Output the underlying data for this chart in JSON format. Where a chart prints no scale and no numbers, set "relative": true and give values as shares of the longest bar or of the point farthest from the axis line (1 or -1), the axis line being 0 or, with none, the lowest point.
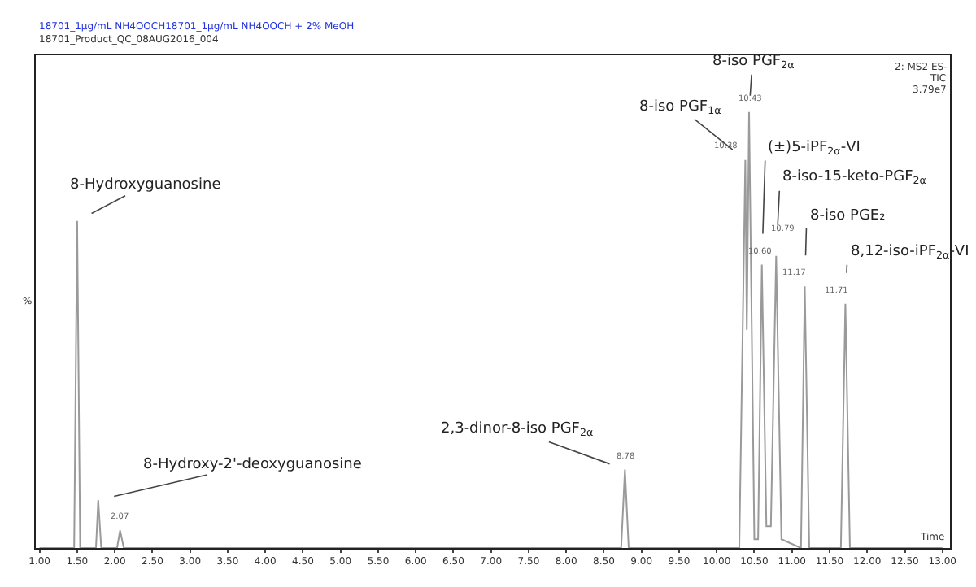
{
  "chart_data": {
    "type": "line",
    "relative": true,
    "xlabel": "Time",
    "ylabel": "%",
    "color": "#9a9a9a",
    "marker": "none",
    "line_style": "solid",
    "legend": false,
    "x": [
      1.0,
      1.46,
      1.5,
      1.54,
      1.75,
      1.78,
      1.82,
      2.03,
      2.07,
      2.12,
      8.73,
      8.78,
      8.83,
      10.3,
      10.38,
      10.4,
      10.43,
      10.5,
      10.55,
      10.6,
      10.66,
      10.72,
      10.79,
      10.86,
      11.12,
      11.17,
      11.23,
      11.65,
      11.71,
      11.77,
      13.0
    ],
    "values": [
      0,
      0,
      0.75,
      0,
      0,
      0.11,
      0,
      0,
      0.04,
      0,
      0,
      0.18,
      0,
      0,
      0.89,
      0.5,
      1.0,
      0.02,
      0.02,
      0.65,
      0.05,
      0.05,
      0.67,
      0.02,
      0,
      0.6,
      0,
      0,
      0.56,
      0,
      0
    ],
    "xlim": [
      0.95,
      13.1
    ],
    "xticks": [
      {
        "value": 1.0,
        "label": "1.00"
      },
      {
        "value": 1.5,
        "label": "1.50"
      },
      {
        "value": 2.0,
        "label": "2.00"
      },
      {
        "value": 2.5,
        "label": "2.50"
      },
      {
        "value": 3.0,
        "label": "3.00"
      },
      {
        "value": 3.5,
        "label": "3.50"
      },
      {
        "value": 4.0,
        "label": "4.00"
      },
      {
        "value": 4.5,
        "label": "4.50"
      },
      {
        "value": 5.0,
        "label": "5.00"
      },
      {
        "value": 5.5,
        "label": "5.50"
      },
      {
        "value": 6.0,
        "label": "6.00"
      },
      {
        "value": 6.5,
        "label": "6.50"
      },
      {
        "value": 7.0,
        "label": "7.00"
      },
      {
        "value": 7.5,
        "label": "7.50"
      },
      {
        "value": 8.0,
        "label": "8.00"
      },
      {
        "value": 8.5,
        "label": "8.50"
      },
      {
        "value": 9.0,
        "label": "9.00"
      },
      {
        "value": 9.5,
        "label": "9.50"
      },
      {
        "value": 10.0,
        "label": "10.00"
      },
      {
        "value": 10.5,
        "label": "10.50"
      },
      {
        "value": 11.0,
        "label": "11.00"
      },
      {
        "value": 11.5,
        "label": "11.50"
      },
      {
        "value": 12.0,
        "label": "12.00"
      },
      {
        "value": 12.5,
        "label": "12.50"
      },
      {
        "value": 13.0,
        "label": "13.00"
      }
    ],
    "annotations": [
      "18701_1µg/mL NH4OOCH18701_1µg/mL NH4OOCH + 2% MeOH",
      "18701_Product_QC_08AUG2016_004",
      "2: MS2 ES-",
      "TIC",
      "3.79e7",
      {
        "text": "8-Hydroxyguanosine",
        "x": 1.5,
        "y": 0.75
      },
      {
        "text": "8-Hydroxy-2'-deoxyguanosine",
        "x": 1.78,
        "y": 0.11
      },
      {
        "text": "2,3-dinor-8-iso PGF$_{2α}$",
        "x": 8.78,
        "y": 0.18
      },
      {
        "text": "8-iso PGF$_{2α}$",
        "x": 10.43,
        "y": 1.0
      },
      {
        "text": "8-iso PGF$_{1α}$",
        "x": 10.38,
        "y": 0.89
      },
      {
        "text": "(±)5-iPF$_{2α}$-VI",
        "x": 10.6,
        "y": 0.65
      },
      {
        "text": "8-iso-15-keto-PGF$_{2α}$",
        "x": 10.79,
        "y": 0.67
      },
      {
        "text": "8-iso PGE₂",
        "x": 11.17,
        "y": 0.6
      },
      {
        "text": "8,12-iso-iPF$_{2α}$-VI",
        "x": 11.71,
        "y": 0.56
      },
      {
        "text": "2.07",
        "x": 2.07,
        "y": 0.04
      },
      {
        "text": "8.78",
        "x": 8.78,
        "y": 0.18
      },
      {
        "text": "10.38",
        "x": 10.38,
        "y": 0.89
      },
      {
        "text": "10.43",
        "x": 10.43,
        "y": 1.0
      },
      {
        "text": "10.60",
        "x": 10.6,
        "y": 0.65
      },
      {
        "text": "10.79",
        "x": 10.79,
        "y": 0.67
      },
      {
        "text": "11.17",
        "x": 11.17,
        "y": 0.6
      },
      {
        "text": "11.71",
        "x": 11.71,
        "y": 0.56
      }
    ]
  }
}
